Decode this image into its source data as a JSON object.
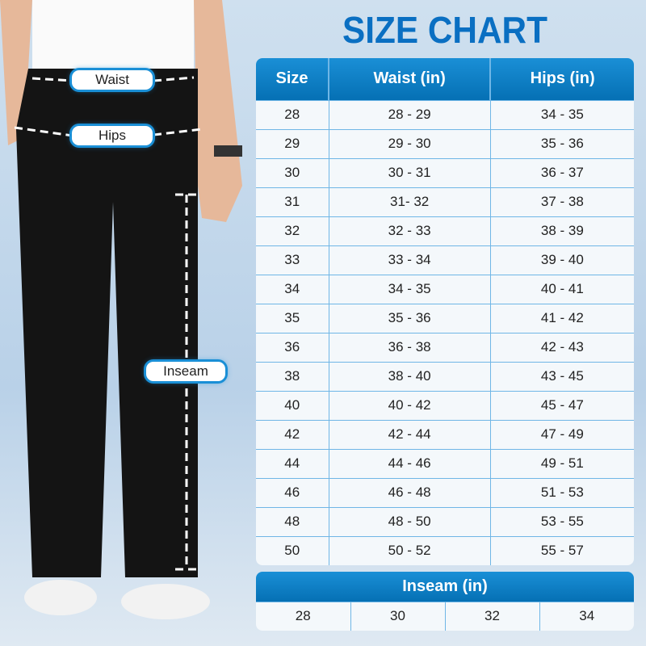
{
  "title": "SIZE CHART",
  "labels": {
    "waist": "Waist",
    "hips": "Hips",
    "inseam": "Inseam"
  },
  "table": {
    "headers": [
      "Size",
      "Waist (in)",
      "Hips (in)"
    ],
    "rows": [
      [
        "28",
        "28 - 29",
        "34 - 35"
      ],
      [
        "29",
        "29 - 30",
        "35 - 36"
      ],
      [
        "30",
        "30 - 31",
        "36 - 37"
      ],
      [
        "31",
        "31- 32",
        "37 - 38"
      ],
      [
        "32",
        "32 - 33",
        "38 - 39"
      ],
      [
        "33",
        "33 - 34",
        "39 - 40"
      ],
      [
        "34",
        "34 - 35",
        "40 - 41"
      ],
      [
        "35",
        "35 - 36",
        "41 - 42"
      ],
      [
        "36",
        "36 - 38",
        "42 - 43"
      ],
      [
        "38",
        "38 - 40",
        "43 - 45"
      ],
      [
        "40",
        "40 - 42",
        "45 - 47"
      ],
      [
        "42",
        "42 - 44",
        "47 - 49"
      ],
      [
        "44",
        "44 - 46",
        "49 - 51"
      ],
      [
        "46",
        "46 - 48",
        "51 - 53"
      ],
      [
        "48",
        "48 - 50",
        "53 - 55"
      ],
      [
        "50",
        "50 - 52",
        "55 - 57"
      ]
    ]
  },
  "inseam": {
    "header": "Inseam (in)",
    "values": [
      "28",
      "30",
      "32",
      "34"
    ]
  },
  "colors": {
    "accent": "#0a6fc2",
    "header": "#0570b4",
    "border": "#6fb6e6"
  }
}
